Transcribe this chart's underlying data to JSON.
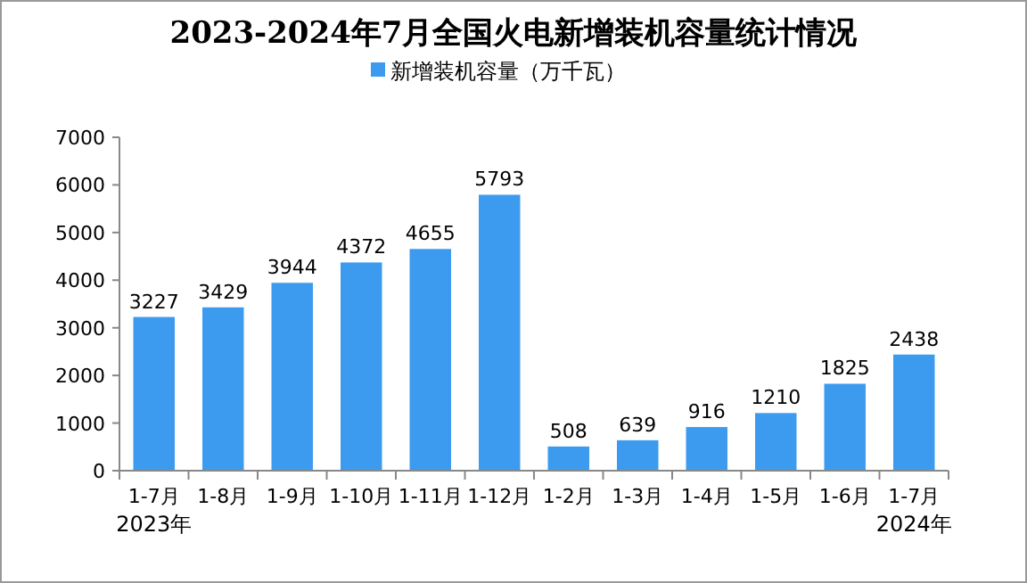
{
  "chart_data": {
    "type": "bar",
    "title": "2023-2024年7月全国火电新增装机容量统计情况",
    "categories": [
      "1-7月",
      "1-8月",
      "1-9月",
      "1-10月",
      "1-11月",
      "1-12月",
      "1-2月",
      "1-3月",
      "1-4月",
      "1-5月",
      "1-6月",
      "1-7月"
    ],
    "series": [
      {
        "name": "新增装机容量（万千瓦）",
        "color": "#3d9bef",
        "values": [
          3227,
          3429,
          3944,
          4372,
          4655,
          5793,
          508,
          639,
          916,
          1210,
          1825,
          2438
        ]
      }
    ],
    "ylim": [
      0,
      7000
    ],
    "yticks": [
      0,
      1000,
      2000,
      3000,
      4000,
      5000,
      6000,
      7000
    ],
    "grid": false,
    "legend": "top",
    "data_labels": true,
    "annotations": [
      "2023年",
      "2024年"
    ]
  }
}
